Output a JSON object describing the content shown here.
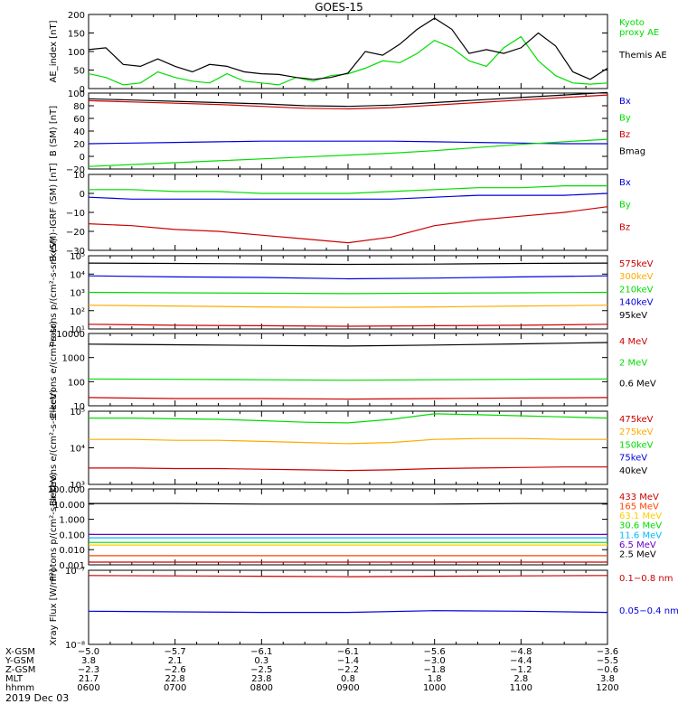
{
  "title": "GOES-15",
  "date_label": "2019 Dec 03",
  "chart_data": [
    {
      "type": "line",
      "ylabel": "AE_index [nT]",
      "ylim": [
        0,
        200
      ],
      "yscale": "linear",
      "yticks": [
        0,
        50,
        100,
        150,
        200
      ],
      "ytick_labels": [
        "0",
        "50",
        "100",
        "150",
        "200"
      ],
      "x_hours": [
        6,
        6.2,
        6.4,
        6.6,
        6.8,
        7,
        7.2,
        7.4,
        7.6,
        7.8,
        8,
        8.2,
        8.4,
        8.6,
        8.8,
        9,
        9.2,
        9.4,
        9.6,
        9.8,
        10,
        10.2,
        10.4,
        10.6,
        10.8,
        11,
        11.2,
        11.4,
        11.6,
        11.8,
        12
      ],
      "series": [
        {
          "name": "Kyoto proxy AE",
          "label_lines": [
            "Kyoto",
            "proxy AE"
          ],
          "color": "#00dd00",
          "values": [
            40,
            30,
            10,
            15,
            45,
            30,
            20,
            15,
            40,
            20,
            15,
            10,
            30,
            20,
            35,
            40,
            55,
            75,
            70,
            95,
            130,
            110,
            75,
            60,
            110,
            140,
            75,
            35,
            15,
            12,
            15
          ]
        },
        {
          "name": "Themis AE",
          "label_lines": [
            "Themis AE"
          ],
          "color": "#000000",
          "values": [
            105,
            110,
            65,
            60,
            80,
            60,
            45,
            65,
            60,
            45,
            40,
            38,
            30,
            25,
            30,
            42,
            100,
            90,
            120,
            160,
            190,
            160,
            95,
            105,
            95,
            110,
            150,
            115,
            45,
            25,
            55
          ]
        }
      ]
    },
    {
      "type": "line",
      "ylabel": "B (SM) [nT]",
      "ylim": [
        -20,
        100
      ],
      "yscale": "linear",
      "yticks": [
        -20,
        0,
        20,
        40,
        60,
        80,
        100
      ],
      "ytick_labels": [
        "−20",
        "0",
        "20",
        "40",
        "60",
        "80",
        "100"
      ],
      "x_hours": [
        6,
        6.5,
        7,
        7.5,
        8,
        8.5,
        9,
        9.5,
        10,
        10.5,
        11,
        11.5,
        12
      ],
      "series": [
        {
          "name": "Bx",
          "label_lines": [
            "Bx"
          ],
          "color": "#0000dd",
          "values": [
            20,
            21,
            22,
            23,
            24,
            24,
            24,
            24,
            23,
            22,
            21,
            20,
            20
          ]
        },
        {
          "name": "By",
          "label_lines": [
            "By"
          ],
          "color": "#00dd00",
          "values": [
            -16,
            -13,
            -10,
            -7,
            -4,
            -1,
            2,
            5,
            9,
            14,
            19,
            23,
            27
          ]
        },
        {
          "name": "Bz",
          "label_lines": [
            "Bz"
          ],
          "color": "#cc0000",
          "values": [
            88,
            86,
            84,
            82,
            79,
            76,
            75,
            77,
            81,
            85,
            89,
            93,
            97
          ]
        },
        {
          "name": "Bmag",
          "label_lines": [
            "Bmag"
          ],
          "color": "#000000",
          "values": [
            91,
            89,
            87,
            85,
            83,
            80,
            79,
            81,
            85,
            89,
            93,
            97,
            101
          ]
        }
      ]
    },
    {
      "type": "line",
      "ylabel": "B (SM)-IGRF (SM) [nT]",
      "ylim": [
        -30,
        10
      ],
      "yscale": "linear",
      "yticks": [
        -30,
        -20,
        -10,
        0,
        10
      ],
      "ytick_labels": [
        "−30",
        "−20",
        "−10",
        "0",
        "10"
      ],
      "x_hours": [
        6,
        6.5,
        7,
        7.5,
        8,
        8.5,
        9,
        9.5,
        10,
        10.5,
        11,
        11.5,
        12
      ],
      "series": [
        {
          "name": "Bx",
          "label_lines": [
            "Bx"
          ],
          "color": "#0000dd",
          "values": [
            -2,
            -3,
            -3,
            -3,
            -3,
            -3,
            -3,
            -3,
            -2,
            -1,
            -1,
            -1,
            0
          ]
        },
        {
          "name": "By",
          "label_lines": [
            "By"
          ],
          "color": "#00dd00",
          "values": [
            2,
            2,
            1,
            1,
            0,
            0,
            0,
            1,
            2,
            3,
            3,
            4,
            4
          ]
        },
        {
          "name": "Bz",
          "label_lines": [
            "Bz"
          ],
          "color": "#cc0000",
          "values": [
            -16,
            -17,
            -19,
            -20,
            -22,
            -24,
            -26,
            -23,
            -17,
            -14,
            -12,
            -10,
            -7
          ]
        }
      ]
    },
    {
      "type": "line",
      "ylabel": "Protons p/(cm²-s-sr-keV)",
      "ylim": [
        10,
        100000
      ],
      "yscale": "log",
      "yticks": [
        10,
        100,
        1000,
        10000,
        100000
      ],
      "ytick_labels": [
        "10¹",
        "10²",
        "10³",
        "10⁴",
        "10⁵"
      ],
      "x_hours": [
        6,
        7,
        8,
        9,
        10,
        11,
        12
      ],
      "series": [
        {
          "name": "575keV",
          "label_lines": [
            "575keV"
          ],
          "color": "#cc0000",
          "values": [
            18,
            16,
            15,
            14,
            15,
            16,
            18
          ]
        },
        {
          "name": "300keV",
          "label_lines": [
            "300keV"
          ],
          "color": "#ffaa00",
          "values": [
            200,
            180,
            160,
            150,
            160,
            180,
            200
          ]
        },
        {
          "name": "210keV",
          "label_lines": [
            "210keV"
          ],
          "color": "#00dd00",
          "values": [
            1000,
            950,
            900,
            850,
            900,
            950,
            1000
          ]
        },
        {
          "name": "140keV",
          "label_lines": [
            "140keV"
          ],
          "color": "#0000dd",
          "values": [
            8000,
            7000,
            6500,
            5500,
            6000,
            7000,
            8000
          ]
        },
        {
          "name": "95keV",
          "label_lines": [
            "95keV"
          ],
          "color": "#000000",
          "values": [
            40000,
            38000,
            36000,
            34000,
            35000,
            38000,
            40000
          ]
        }
      ]
    },
    {
      "type": "line",
      "ylabel": "Electrons e/(cm²-s-sr)",
      "ylim": [
        10,
        10000
      ],
      "yscale": "log",
      "yticks": [
        10,
        100,
        1000,
        10000
      ],
      "ytick_labels": [
        "10",
        "100",
        "1000",
        "10000"
      ],
      "x_hours": [
        6,
        7,
        8,
        9,
        10,
        11,
        12
      ],
      "series": [
        {
          "name": "4 MeV",
          "label_lines": [
            "4 MeV"
          ],
          "color": "#cc0000",
          "values": [
            22,
            20,
            20,
            19,
            20,
            21,
            22
          ]
        },
        {
          "name": "2 MeV",
          "label_lines": [
            "2 MeV"
          ],
          "color": "#00dd00",
          "values": [
            130,
            125,
            120,
            115,
            120,
            125,
            130
          ]
        },
        {
          "name": "0.6 MeV",
          "label_lines": [
            "0.6 MeV"
          ],
          "color": "#000000",
          "values": [
            3600,
            3400,
            3200,
            3000,
            3300,
            3700,
            4200
          ]
        }
      ]
    },
    {
      "type": "line",
      "ylabel": "Electrons e/(cm²-s-sr-keV)",
      "ylim": [
        1000,
        100000
      ],
      "yscale": "log",
      "yticks": [
        1000,
        10000,
        100000
      ],
      "ytick_labels": [
        "10³",
        "10⁴",
        "10⁵"
      ],
      "x_hours": [
        6,
        6.5,
        7,
        7.5,
        8,
        8.5,
        9,
        9.5,
        10,
        10.5,
        11,
        11.5,
        12
      ],
      "series": [
        {
          "name": "475keV",
          "label_lines": [
            "475keV"
          ],
          "color": "#cc0000",
          "values": [
            2800,
            2800,
            2700,
            2700,
            2600,
            2500,
            2400,
            2500,
            2700,
            2800,
            2900,
            3000,
            3000
          ]
        },
        {
          "name": "275keV",
          "label_lines": [
            "275keV"
          ],
          "color": "#ffaa00",
          "values": [
            17000,
            17000,
            16000,
            16000,
            15000,
            14000,
            13000,
            14000,
            17000,
            18000,
            18000,
            17000,
            17000
          ]
        },
        {
          "name": "150keV",
          "label_lines": [
            "150keV"
          ],
          "color": "#00dd00",
          "values": [
            65000,
            65000,
            62000,
            60000,
            55000,
            50000,
            48000,
            60000,
            85000,
            80000,
            75000,
            70000,
            65000
          ]
        },
        {
          "name": "75keV",
          "label_lines": [
            "75keV"
          ],
          "color": "#0000dd",
          "values": []
        },
        {
          "name": "40keV",
          "label_lines": [
            "40keV"
          ],
          "color": "#000000",
          "values": []
        }
      ]
    },
    {
      "type": "line",
      "ylabel": "Protons p/(cm²-s-sr-keV)",
      "ylim": [
        0.001,
        100
      ],
      "yscale": "log",
      "yticks": [
        0.001,
        0.01,
        0.1,
        1,
        10,
        100
      ],
      "ytick_labels": [
        "0.001",
        "0.010",
        "0.100",
        "1.000",
        "10.000",
        "100.000"
      ],
      "x_hours": [
        6,
        7,
        8,
        9,
        10,
        11,
        12
      ],
      "series": [
        {
          "name": "433 MeV",
          "label_lines": [
            "433 MeV"
          ],
          "color": "#cc0000",
          "values": [
            0.0015,
            0.0015,
            0.0015,
            0.0015,
            0.0015,
            0.0015,
            0.0015
          ]
        },
        {
          "name": "165 MeV",
          "label_lines": [
            "165 MeV"
          ],
          "color": "#ff4400",
          "values": [
            0.004,
            0.004,
            0.004,
            0.004,
            0.004,
            0.004,
            0.004
          ]
        },
        {
          "name": "63.1 MeV",
          "label_lines": [
            "63.1 MeV"
          ],
          "color": "#ffcc00",
          "values": [
            0.02,
            0.02,
            0.02,
            0.02,
            0.02,
            0.02,
            0.02
          ]
        },
        {
          "name": "30.6 MeV",
          "label_lines": [
            "30.6 MeV"
          ],
          "color": "#00dd00",
          "values": [
            0.03,
            0.03,
            0.03,
            0.03,
            0.03,
            0.03,
            0.03
          ]
        },
        {
          "name": "11.6 MeV",
          "label_lines": [
            "11.6 MeV"
          ],
          "color": "#00bbff",
          "values": [
            0.06,
            0.06,
            0.06,
            0.06,
            0.06,
            0.06,
            0.06
          ]
        },
        {
          "name": "6.5 MeV",
          "label_lines": [
            "6.5 MeV"
          ],
          "color": "#6600cc",
          "values": [
            0.1,
            0.1,
            0.1,
            0.1,
            0.1,
            0.1,
            0.1
          ]
        },
        {
          "name": "2.5 MeV",
          "label_lines": [
            "2.5 MeV"
          ],
          "color": "#000000",
          "values": [
            11,
            11,
            10,
            10,
            10,
            11,
            11
          ]
        }
      ]
    },
    {
      "type": "line",
      "ylabel": "Xray Flux [W/m²]",
      "ylim": [
        1e-08,
        1e-07
      ],
      "yscale": "log",
      "yticks": [
        1e-08,
        1e-07
      ],
      "ytick_labels": [
        "10⁻⁸",
        "10⁻⁷"
      ],
      "x_hours": [
        6,
        7,
        8,
        9,
        10,
        11,
        12
      ],
      "series": [
        {
          "name": "0.1-0.8 nm",
          "label_lines": [
            "0.1−0.8 nm"
          ],
          "color": "#cc0000",
          "values": [
            8.5e-08,
            8.4e-08,
            8.3e-08,
            8.2e-08,
            8.3e-08,
            8.4e-08,
            8.5e-08
          ]
        },
        {
          "name": "0.05-0.4 nm",
          "label_lines": [
            "0.05−0.4 nm"
          ],
          "color": "#0000dd",
          "values": [
            2.8e-08,
            2.75e-08,
            2.7e-08,
            2.7e-08,
            2.85e-08,
            2.8e-08,
            2.7e-08
          ]
        }
      ]
    }
  ],
  "ephemeris": {
    "rows": [
      {
        "label": "X-GSM",
        "values": [
          "−5.0",
          "−5.7",
          "−6.1",
          "−6.1",
          "−5.6",
          "−4.8",
          "−3.6"
        ]
      },
      {
        "label": "Y-GSM",
        "values": [
          "3.8",
          "2.1",
          "0.3",
          "−1.4",
          "−3.0",
          "−4.4",
          "−5.5"
        ]
      },
      {
        "label": "Z-GSM",
        "values": [
          "−2.3",
          "−2.6",
          "−2.5",
          "−2.2",
          "−1.8",
          "−1.2",
          "−0.6"
        ]
      },
      {
        "label": "MLT",
        "values": [
          "21.7",
          "22.8",
          "23.8",
          "0.8",
          "1.8",
          "2.8",
          "3.8"
        ]
      },
      {
        "label": "hhmm",
        "values": [
          "0600",
          "0700",
          "0800",
          "0900",
          "1000",
          "1100",
          "1200"
        ]
      }
    ]
  }
}
